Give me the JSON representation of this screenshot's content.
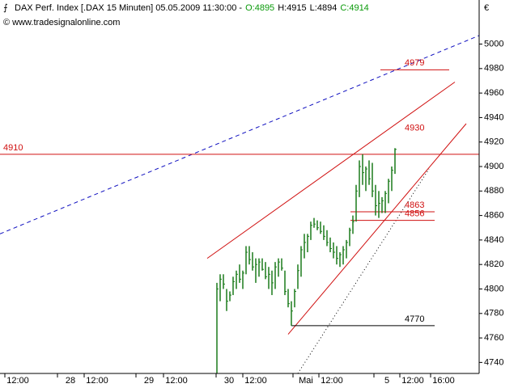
{
  "chart_data": {
    "type": "ohlc",
    "title": "DAX Perf. Index [.DAX  15 Minuten] 05.05.2009 11:30:00 -",
    "quote": [
      "O:4895",
      "H:4915",
      "L:4894",
      "C:4914"
    ],
    "quote_colors": [
      "#0a9a0a",
      "#000000",
      "#000000",
      "#0a9a0a"
    ],
    "source": "© www.tradesignalonline.com",
    "currency": "€",
    "color": "#1a7a1a",
    "x": [
      0,
      1,
      2,
      3,
      4,
      5,
      6,
      7,
      8,
      9,
      10,
      11,
      12,
      13,
      14,
      15,
      16,
      17,
      18,
      19,
      20,
      21,
      22,
      23,
      24,
      25,
      26,
      27,
      28,
      29,
      30,
      31,
      32,
      33,
      34,
      35,
      36,
      37,
      38,
      39,
      40,
      41,
      42,
      43,
      44,
      45,
      46,
      47,
      48,
      49,
      50,
      51,
      52,
      53,
      54,
      55
    ],
    "high": [
      4805,
      4812,
      4812,
      4800,
      4798,
      4810,
      4815,
      4820,
      4815,
      4835,
      4835,
      4830,
      4825,
      4825,
      4825,
      4822,
      4818,
      4815,
      4822,
      4825,
      4825,
      4815,
      4800,
      4790,
      4800,
      4820,
      4835,
      4845,
      4845,
      4855,
      4858,
      4856,
      4855,
      4852,
      4848,
      4842,
      4838,
      4835,
      4830,
      4835,
      4840,
      4850,
      4860,
      4885,
      4905,
      4910,
      4900,
      4905,
      4903,
      4885,
      4880,
      4875,
      4880,
      4890,
      4900,
      4915
    ],
    "low": [
      4731,
      4790,
      4800,
      4782,
      4790,
      4795,
      4800,
      4805,
      4800,
      4812,
      4820,
      4815,
      4805,
      4810,
      4815,
      4808,
      4800,
      4795,
      4800,
      4810,
      4815,
      4795,
      4785,
      4770,
      4785,
      4800,
      4810,
      4825,
      4830,
      4840,
      4850,
      4848,
      4845,
      4840,
      4835,
      4830,
      4825,
      4820,
      4818,
      4820,
      4825,
      4835,
      4845,
      4855,
      4875,
      4885,
      4880,
      4885,
      4875,
      4860,
      4858,
      4862,
      4862,
      4870,
      4880,
      4894
    ],
    "close": [
      4800,
      4808,
      4804,
      4790,
      4795,
      4806,
      4812,
      4808,
      4813,
      4830,
      4824,
      4818,
      4820,
      4822,
      4816,
      4810,
      4812,
      4805,
      4818,
      4822,
      4817,
      4798,
      4788,
      4782,
      4798,
      4815,
      4832,
      4838,
      4843,
      4852,
      4853,
      4850,
      4847,
      4843,
      4838,
      4833,
      4830,
      4825,
      4828,
      4832,
      4838,
      4848,
      4855,
      4880,
      4900,
      4895,
      4898,
      4890,
      4880,
      4868,
      4870,
      4872,
      4878,
      4888,
      4897,
      4914
    ],
    "xlim": [
      -67,
      81
    ],
    "ylim": [
      4731,
      5036
    ],
    "xticks": [
      {
        "value": -61.5,
        "label": "12:00"
      },
      {
        "value": -45.25,
        "label": "28"
      },
      {
        "value": -37,
        "label": "12:00"
      },
      {
        "value": -21,
        "label": "29"
      },
      {
        "value": -12.5,
        "label": "12:00"
      },
      {
        "value": 3.75,
        "label": "30"
      },
      {
        "value": 12,
        "label": "12:00"
      },
      {
        "value": 27.5,
        "label": "Mai"
      },
      {
        "value": 35.5,
        "label": "12:00"
      },
      {
        "value": 52.5,
        "label": "5"
      },
      {
        "value": 60.5,
        "label": "12:00"
      },
      {
        "value": 70,
        "label": "16:00"
      }
    ],
    "yticks": [
      4740,
      4760,
      4780,
      4800,
      4820,
      4840,
      4860,
      4880,
      4900,
      4920,
      4940,
      4960,
      4980,
      5000
    ],
    "hlines": [
      {
        "value": 4910,
        "x": [
          -67,
          81
        ],
        "color": "#d01010",
        "label_x": -66
      },
      {
        "value": 4979,
        "x": [
          50.5,
          71.75
        ],
        "color": "#d01010",
        "label_x": 58
      },
      {
        "value": 4863,
        "x": [
          41.25,
          67.25
        ],
        "color": "#d01010",
        "label_x": 58
      },
      {
        "value": 4856,
        "x": [
          41.25,
          67.25
        ],
        "color": "#d01010",
        "label_x": 58
      },
      {
        "value": 4770,
        "x": [
          23,
          67.25
        ],
        "color": "#000000",
        "label_x": 58
      }
    ],
    "trendlines": [
      {
        "x": [
          -3,
          73.5
        ],
        "y": [
          4825,
          4969
        ],
        "color": "#d01010",
        "dash": "none",
        "label": "4930",
        "label_x": 58,
        "label_y": 4930
      },
      {
        "x": [
          22,
          77
        ],
        "y": [
          4763,
          4935
        ],
        "color": "#d01010",
        "dash": "none"
      },
      {
        "x": [
          -67,
          81
        ],
        "y": [
          4845,
          5007
        ],
        "color": "#1010c0",
        "dash": "5 4"
      },
      {
        "x": [
          25,
          65.5
        ],
        "y": [
          4731,
          4898
        ],
        "color": "#000000",
        "dash": "1 3"
      }
    ]
  }
}
